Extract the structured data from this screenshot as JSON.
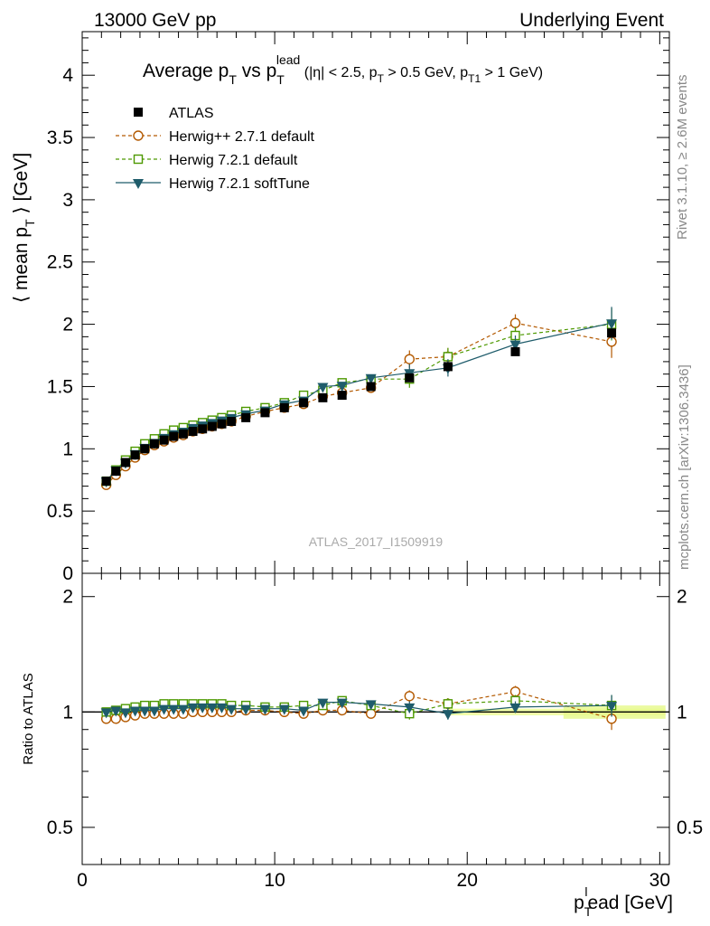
{
  "header": {
    "left": "13000 GeV pp",
    "right": "Underlying Event"
  },
  "side_labels": {
    "rivet": "Rivet 3.1.10, ≥ 2.6M events",
    "mcplots": "mcplots.cern.ch [arXiv:1306.3436]"
  },
  "watermark": "ATLAS_2017_I1509919",
  "chart_data": {
    "type": "scatter",
    "title": {
      "main": "Average p",
      "main_sub": "T",
      "vs": " vs p",
      "vs_sub": "T",
      "vs_sup": "lead",
      "cuts_a": " (|η| < 2.5, p",
      "cuts_a_sub": "T",
      "cuts_b": " > 0.5 GeV, p",
      "cuts_b_sub": "T1",
      "cuts_c": " > 1 GeV)"
    },
    "ylabel": {
      "main": "⟨ mean p",
      "sub": "T",
      "tail": " ⟩ [GeV]"
    },
    "ratio_ylabel": "Ratio to ATLAS",
    "xlabel": {
      "p": "p",
      "sub": "T",
      "sup": "l",
      "tail": "ead [GeV]"
    },
    "xlim": [
      0,
      30.5
    ],
    "ylim": [
      0,
      4.35
    ],
    "ratio_ylim": [
      0.4,
      2.3
    ],
    "x_ticks": [
      0,
      10,
      20,
      30
    ],
    "y_ticks": [
      0,
      0.5,
      1,
      1.5,
      2,
      2.5,
      3,
      3.5,
      4
    ],
    "y_tick_labels": [
      "0",
      "0.5",
      "1",
      "1.5",
      "2",
      "2.5",
      "3",
      "3.5",
      "4"
    ],
    "ratio_ticks": [
      0.5,
      1,
      2
    ],
    "ratio_tick_labels": [
      "0.5",
      "1",
      "2"
    ],
    "legend_position": "top-left",
    "x": [
      1.25,
      1.75,
      2.25,
      2.75,
      3.25,
      3.75,
      4.25,
      4.75,
      5.25,
      5.75,
      6.25,
      6.75,
      7.25,
      7.75,
      8.5,
      9.5,
      10.5,
      11.5,
      12.5,
      13.5,
      15,
      17,
      19,
      22.5,
      27.5
    ],
    "series": [
      {
        "name": "ATLAS",
        "color": "#000000",
        "marker": "square-filled",
        "y": [
          0.74,
          0.82,
          0.89,
          0.95,
          1.0,
          1.04,
          1.07,
          1.1,
          1.12,
          1.14,
          1.16,
          1.18,
          1.2,
          1.22,
          1.25,
          1.29,
          1.33,
          1.37,
          1.41,
          1.43,
          1.5,
          1.57,
          1.66,
          1.78,
          1.93
        ],
        "ratio": [
          1,
          1,
          1,
          1,
          1,
          1,
          1,
          1,
          1,
          1,
          1,
          1,
          1,
          1,
          1,
          1,
          1,
          1,
          1,
          1,
          1,
          1,
          1,
          1,
          1
        ]
      },
      {
        "name": "Herwig++ 2.7.1 default",
        "color": "#b35900",
        "marker": "circle-open",
        "dashed": true,
        "y": [
          0.71,
          0.79,
          0.86,
          0.93,
          0.99,
          1.03,
          1.06,
          1.09,
          1.11,
          1.14,
          1.16,
          1.18,
          1.2,
          1.22,
          1.26,
          1.3,
          1.33,
          1.36,
          1.42,
          1.45,
          1.49,
          1.72,
          1.74,
          2.01,
          1.86
        ],
        "ratio": [
          0.96,
          0.96,
          0.97,
          0.98,
          0.99,
          0.99,
          0.99,
          0.99,
          0.99,
          1.0,
          1.0,
          1.0,
          1.0,
          1.0,
          1.01,
          1.01,
          1.0,
          0.99,
          1.01,
          1.01,
          0.99,
          1.1,
          1.05,
          1.13,
          0.96
        ]
      },
      {
        "name": "Herwig 7.2.1 default",
        "color": "#4d9900",
        "marker": "square-open",
        "dashed": true,
        "y": [
          0.74,
          0.83,
          0.91,
          0.98,
          1.04,
          1.08,
          1.12,
          1.15,
          1.17,
          1.19,
          1.21,
          1.23,
          1.25,
          1.27,
          1.3,
          1.33,
          1.37,
          1.43,
          1.47,
          1.53,
          1.56,
          1.56,
          1.74,
          1.91,
          2.0
        ],
        "ratio": [
          1.0,
          1.01,
          1.02,
          1.03,
          1.04,
          1.04,
          1.05,
          1.05,
          1.05,
          1.05,
          1.05,
          1.05,
          1.05,
          1.04,
          1.04,
          1.03,
          1.03,
          1.04,
          1.04,
          1.07,
          1.04,
          0.99,
          1.05,
          1.07,
          1.04
        ]
      },
      {
        "name": "Herwig 7.2.1 softTune",
        "color": "#1f5c6b",
        "marker": "triangle-down-filled",
        "dashed": false,
        "y": [
          0.74,
          0.83,
          0.89,
          0.96,
          1.01,
          1.05,
          1.09,
          1.12,
          1.14,
          1.17,
          1.19,
          1.21,
          1.23,
          1.25,
          1.28,
          1.31,
          1.36,
          1.39,
          1.5,
          1.51,
          1.57,
          1.61,
          1.65,
          1.84,
          2.01
        ],
        "ratio": [
          1.0,
          1.01,
          1.0,
          1.01,
          1.01,
          1.01,
          1.02,
          1.02,
          1.02,
          1.03,
          1.03,
          1.03,
          1.03,
          1.02,
          1.02,
          1.02,
          1.02,
          1.01,
          1.06,
          1.06,
          1.05,
          1.03,
          0.99,
          1.03,
          1.04
        ]
      }
    ]
  }
}
